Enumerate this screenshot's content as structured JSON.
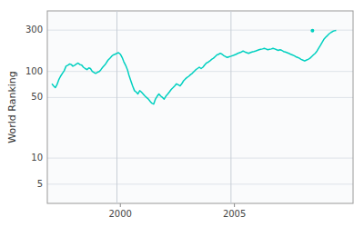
{
  "chart_data": {
    "type": "line",
    "ylabel": "World Ranking",
    "log": "y",
    "grid": true,
    "xlim": [
      1996.8,
      2010.2
    ],
    "xticks": [
      2000,
      2005
    ],
    "ylim": [
      3,
      500
    ],
    "yticks": [
      5,
      10,
      50,
      100,
      300
    ],
    "vlines": [
      1999.85,
      2004.85
    ],
    "series": [
      {
        "color": "#00d0c0",
        "x": [
          1997.0,
          1997.08,
          1997.15,
          1997.22,
          1997.3,
          1997.38,
          1997.46,
          1997.54,
          1997.62,
          1997.7,
          1997.78,
          1997.85,
          1997.92,
          1998.0,
          1998.08,
          1998.15,
          1998.23,
          1998.31,
          1998.38,
          1998.46,
          1998.54,
          1998.62,
          1998.69,
          1998.77,
          1998.85,
          1998.92,
          1999.0,
          1999.08,
          1999.15,
          1999.23,
          1999.31,
          1999.38,
          1999.46,
          1999.54,
          1999.62,
          1999.69,
          1999.77,
          1999.85,
          1999.92,
          2000.0,
          2000.08,
          2000.15,
          2000.23,
          2000.31,
          2000.38,
          2000.46,
          2000.54,
          2000.62,
          2000.69,
          2000.77,
          2000.85,
          2000.92,
          2001.0,
          2001.08,
          2001.15,
          2001.23,
          2001.31,
          2001.38,
          2001.46,
          2001.54,
          2001.62,
          2001.69,
          2001.77,
          2001.85,
          2001.92,
          2002.0,
          2002.08,
          2002.15,
          2002.23,
          2002.31,
          2002.38,
          2002.46,
          2002.54,
          2002.62,
          2002.69,
          2002.77,
          2002.85,
          2002.92,
          2003.0,
          2003.08,
          2003.15,
          2003.23,
          2003.31,
          2003.38,
          2003.46,
          2003.54,
          2003.62,
          2003.69,
          2003.77,
          2003.85,
          2003.92,
          2004.0,
          2004.08,
          2004.15,
          2004.23,
          2004.31,
          2004.38,
          2004.46,
          2004.54,
          2004.62,
          2004.69,
          2004.77,
          2004.85,
          2004.92,
          2005.0,
          2005.08,
          2005.15,
          2005.23,
          2005.31,
          2005.38,
          2005.46,
          2005.54,
          2005.62,
          2005.69,
          2005.77,
          2005.85,
          2005.92,
          2006.0,
          2006.08,
          2006.15,
          2006.23,
          2006.31,
          2006.38,
          2006.46,
          2006.54,
          2006.62,
          2006.69,
          2006.77,
          2006.85,
          2006.92,
          2007.0,
          2007.08,
          2007.15,
          2007.23,
          2007.31,
          2007.38,
          2007.46,
          2007.54,
          2007.62,
          2007.69,
          2007.77,
          2007.85,
          2007.92,
          2008.0,
          2008.08,
          2008.15,
          2008.23,
          2008.31,
          2008.38,
          2008.46,
          2008.54,
          2008.62,
          2008.69,
          2008.77,
          2008.85,
          2008.92,
          2009.0,
          2009.08,
          2009.15,
          2009.23,
          2009.31,
          2009.38,
          2009.46
        ],
        "values": [
          72,
          68,
          65,
          70,
          80,
          88,
          95,
          102,
          115,
          118,
          122,
          120,
          115,
          118,
          122,
          125,
          120,
          118,
          112,
          108,
          105,
          110,
          108,
          100,
          97,
          95,
          98,
          100,
          105,
          112,
          118,
          125,
          135,
          142,
          150,
          155,
          158,
          162,
          165,
          158,
          145,
          130,
          118,
          105,
          90,
          78,
          68,
          60,
          58,
          55,
          60,
          58,
          55,
          52,
          50,
          48,
          45,
          43,
          42,
          48,
          52,
          55,
          52,
          50,
          48,
          52,
          55,
          58,
          62,
          65,
          68,
          72,
          70,
          68,
          72,
          78,
          82,
          85,
          88,
          92,
          95,
          100,
          105,
          108,
          112,
          108,
          112,
          118,
          125,
          128,
          132,
          138,
          142,
          148,
          155,
          158,
          162,
          158,
          152,
          148,
          145,
          148,
          150,
          152,
          155,
          158,
          162,
          165,
          168,
          172,
          168,
          165,
          162,
          165,
          168,
          170,
          172,
          175,
          178,
          180,
          182,
          185,
          182,
          178,
          180,
          182,
          185,
          182,
          178,
          175,
          178,
          175,
          170,
          168,
          165,
          162,
          158,
          155,
          152,
          148,
          145,
          142,
          138,
          135,
          132,
          135,
          138,
          142,
          148,
          155,
          162,
          172,
          185,
          200,
          218,
          235,
          248,
          260,
          272,
          282,
          290,
          295,
          298
        ]
      },
      {
        "type": "scatter",
        "color": "#00d0c0",
        "x": [
          2008.42
        ],
        "values": [
          296
        ]
      }
    ]
  }
}
